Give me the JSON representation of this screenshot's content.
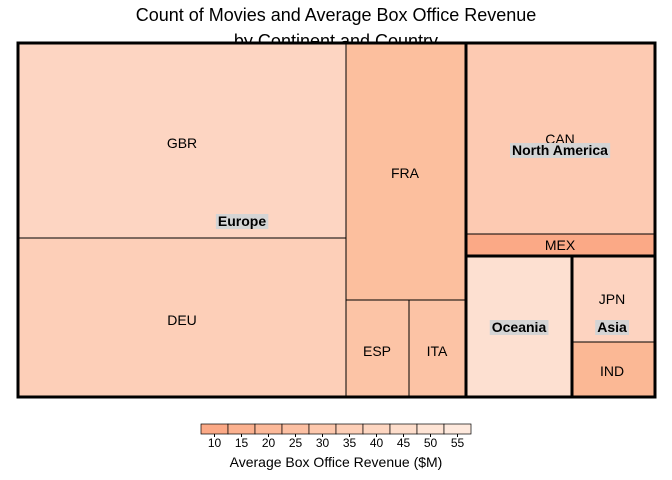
{
  "chart_data": {
    "type": "treemap",
    "title_lines": [
      "Count of Movies and Average Box Office Revenue",
      "by Continent and Country"
    ],
    "groups": [
      {
        "name": "Europe",
        "countries": [
          {
            "code": "GBR",
            "color": "#fdd5c2"
          },
          {
            "code": "DEU",
            "color": "#fdcfb8"
          },
          {
            "code": "FRA",
            "color": "#fcbf9e"
          },
          {
            "code": "ESP",
            "color": "#fcc4a6"
          },
          {
            "code": "ITA",
            "color": "#fcc3a5"
          }
        ]
      },
      {
        "name": "North America",
        "countries": [
          {
            "code": "CAN",
            "color": "#fdcab2"
          },
          {
            "code": "MEX",
            "color": "#fba986"
          }
        ]
      },
      {
        "name": "Oceania",
        "countries": [
          {
            "code": "",
            "color": "#fde0d1"
          }
        ]
      },
      {
        "name": "Asia",
        "countries": [
          {
            "code": "JPN",
            "color": "#fdd3c0"
          },
          {
            "code": "IND",
            "color": "#fbb895"
          }
        ]
      }
    ],
    "legend": {
      "title": "Average Box Office Revenue ($M)",
      "ticks": [
        "10",
        "15",
        "20",
        "25",
        "30",
        "35",
        "40",
        "45",
        "50",
        "55"
      ],
      "colors": [
        "#fba986",
        "#fbb18f",
        "#fcb999",
        "#fcc0a3",
        "#fdc8ad",
        "#fdcfb7",
        "#fdd6c1",
        "#fdddcb",
        "#fee4d5",
        "#fee9dd"
      ]
    }
  }
}
